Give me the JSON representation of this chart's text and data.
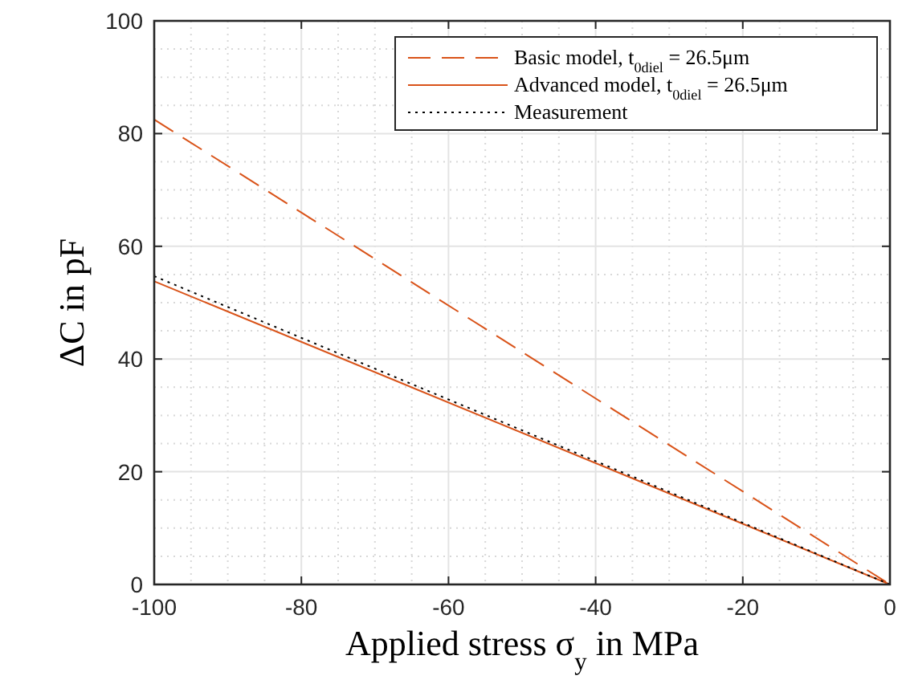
{
  "chart_data": {
    "type": "line",
    "xlabel": "Applied stress σ$_{y}$ in MPa",
    "ylabel": "ΔC in pF",
    "x": [
      -100,
      0
    ],
    "series": [
      {
        "name": "Basic model, t$_{0diel}$ = 26.5μm",
        "color": "#d95319",
        "values": [
          82.5,
          0
        ],
        "line_style": "dashed"
      },
      {
        "name": "Advanced model, t$_{0diel}$ = 26.5μm",
        "color": "#d95319",
        "values": [
          53.8,
          0
        ],
        "line_style": "solid"
      },
      {
        "name": "Measurement",
        "color": "#000000",
        "values": [
          54.7,
          0
        ],
        "line_style": "dotted"
      }
    ],
    "xlim": [
      -100,
      0
    ],
    "xticks": [
      -100,
      -80,
      -60,
      -40,
      -20,
      0
    ],
    "ylim": [
      0,
      100
    ],
    "yticks": [
      0,
      20,
      40,
      60,
      80,
      100
    ],
    "grid": true,
    "legend": "top right"
  }
}
